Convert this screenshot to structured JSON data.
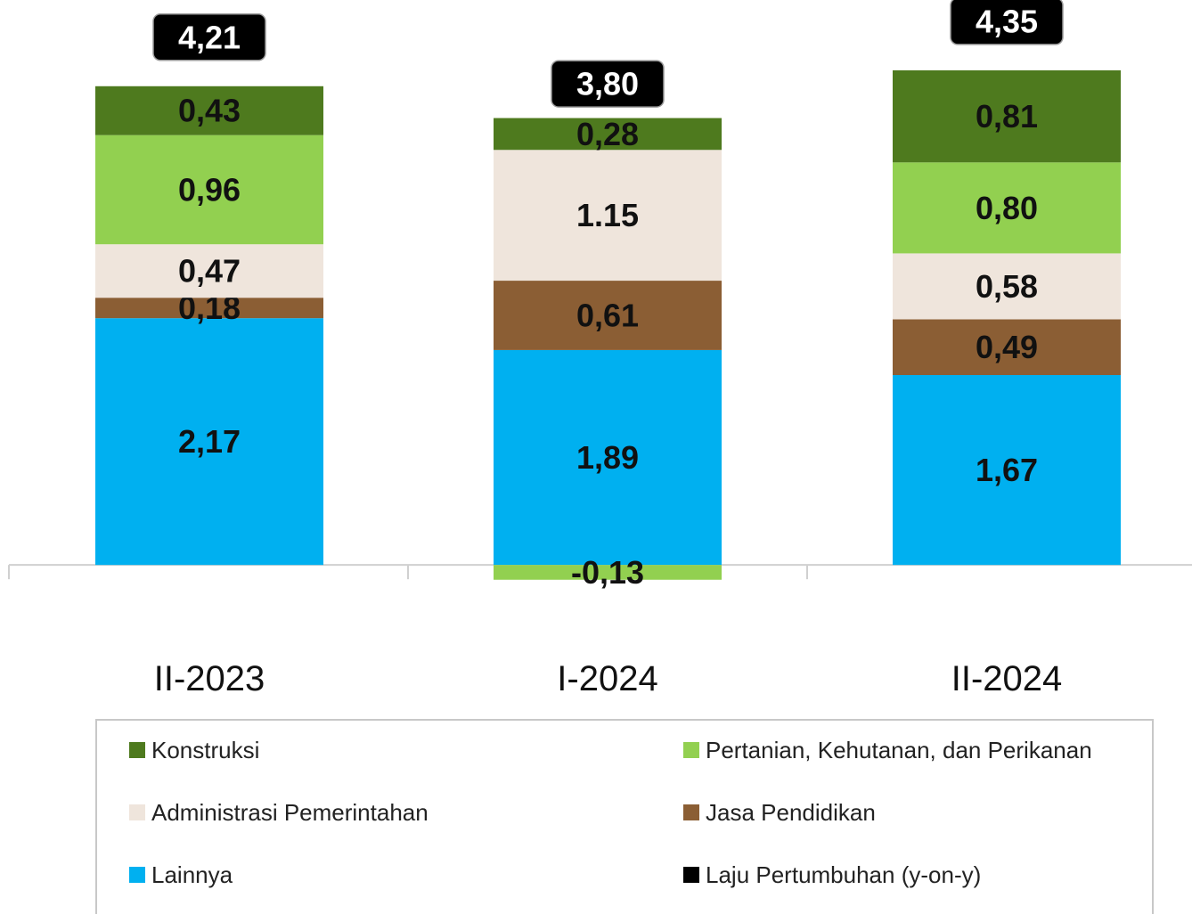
{
  "chart_data": {
    "type": "stacked_bar",
    "categories": [
      "II-2023",
      "I-2024",
      "II-2024"
    ],
    "series": [
      {
        "name": "Konstruksi",
        "color": "#4e7a1e",
        "values": [
          0.43,
          0.28,
          0.81
        ],
        "value_labels": [
          "0,43",
          "0,28",
          "0,81"
        ]
      },
      {
        "name": "Pertanian, Kehutanan, dan Perikanan",
        "color": "#92d050",
        "values": [
          0.96,
          -0.13,
          0.8
        ],
        "value_labels": [
          "0,96",
          "-0,13",
          "0,80"
        ]
      },
      {
        "name": "Administrasi Pemerintahan",
        "color": "#efe5dc",
        "values": [
          0.47,
          1.15,
          0.58
        ],
        "value_labels": [
          "0,47",
          "1.15",
          "0,58"
        ]
      },
      {
        "name": "Jasa Pendidikan",
        "color": "#8b5e34",
        "values": [
          0.18,
          0.61,
          0.49
        ],
        "value_labels": [
          "0,18",
          "0,61",
          "0,49"
        ]
      },
      {
        "name": "Lainnya",
        "color": "#00b0f0",
        "values": [
          2.17,
          1.89,
          1.67
        ],
        "value_labels": [
          "2,17",
          "1,89",
          "1,67"
        ]
      }
    ],
    "total": {
      "name": "Laju Pertumbuhan (y-on-y)",
      "color": "#000000",
      "values": [
        4.21,
        3.8,
        4.35
      ],
      "value_labels": [
        "4,21",
        "3,80",
        "4,35"
      ]
    },
    "ylim": [
      -0.5,
      4.6
    ]
  }
}
